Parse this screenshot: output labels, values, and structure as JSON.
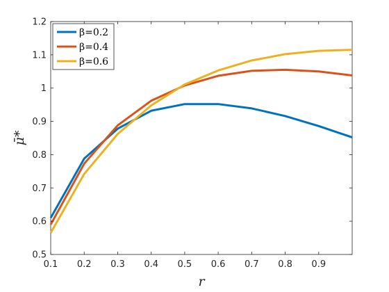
{
  "chart_data": {
    "type": "line",
    "xlabel": "r",
    "ylabel": "μ̄*",
    "xlim": [
      0.1,
      1.0
    ],
    "ylim": [
      0.5,
      1.2
    ],
    "x_ticks": [
      0.1,
      0.2,
      0.3,
      0.4,
      0.5,
      0.6,
      0.7,
      0.8,
      0.9
    ],
    "x_tick_labels": [
      "0.1",
      "0.2",
      "0.3",
      "0.4",
      "0.5",
      "0.6",
      "0.7",
      "0.8",
      "0.9"
    ],
    "y_ticks": [
      0.5,
      0.6,
      0.7,
      0.8,
      0.9,
      1.0,
      1.1,
      1.2
    ],
    "y_tick_labels": [
      "0.5",
      "0.6",
      "0.7",
      "0.8",
      "0.9",
      "1",
      "1.1",
      "1.2"
    ],
    "grid": false,
    "legend_position": "top-left",
    "x": [
      0.1,
      0.2,
      0.3,
      0.4,
      0.5,
      0.6,
      0.7,
      0.8,
      0.9,
      1.0
    ],
    "series": [
      {
        "name": "β=0.2",
        "color": "#0072BD",
        "values": [
          0.61,
          0.788,
          0.878,
          0.932,
          0.952,
          0.952,
          0.939,
          0.916,
          0.886,
          0.852
        ]
      },
      {
        "name": "β=0.4",
        "color": "#D95319",
        "values": [
          0.59,
          0.773,
          0.888,
          0.962,
          1.008,
          1.037,
          1.052,
          1.055,
          1.05,
          1.038
        ]
      },
      {
        "name": "β=0.6",
        "color": "#EDB120",
        "values": [
          0.565,
          0.742,
          0.862,
          0.948,
          1.011,
          1.053,
          1.083,
          1.102,
          1.112,
          1.115
        ]
      }
    ]
  }
}
